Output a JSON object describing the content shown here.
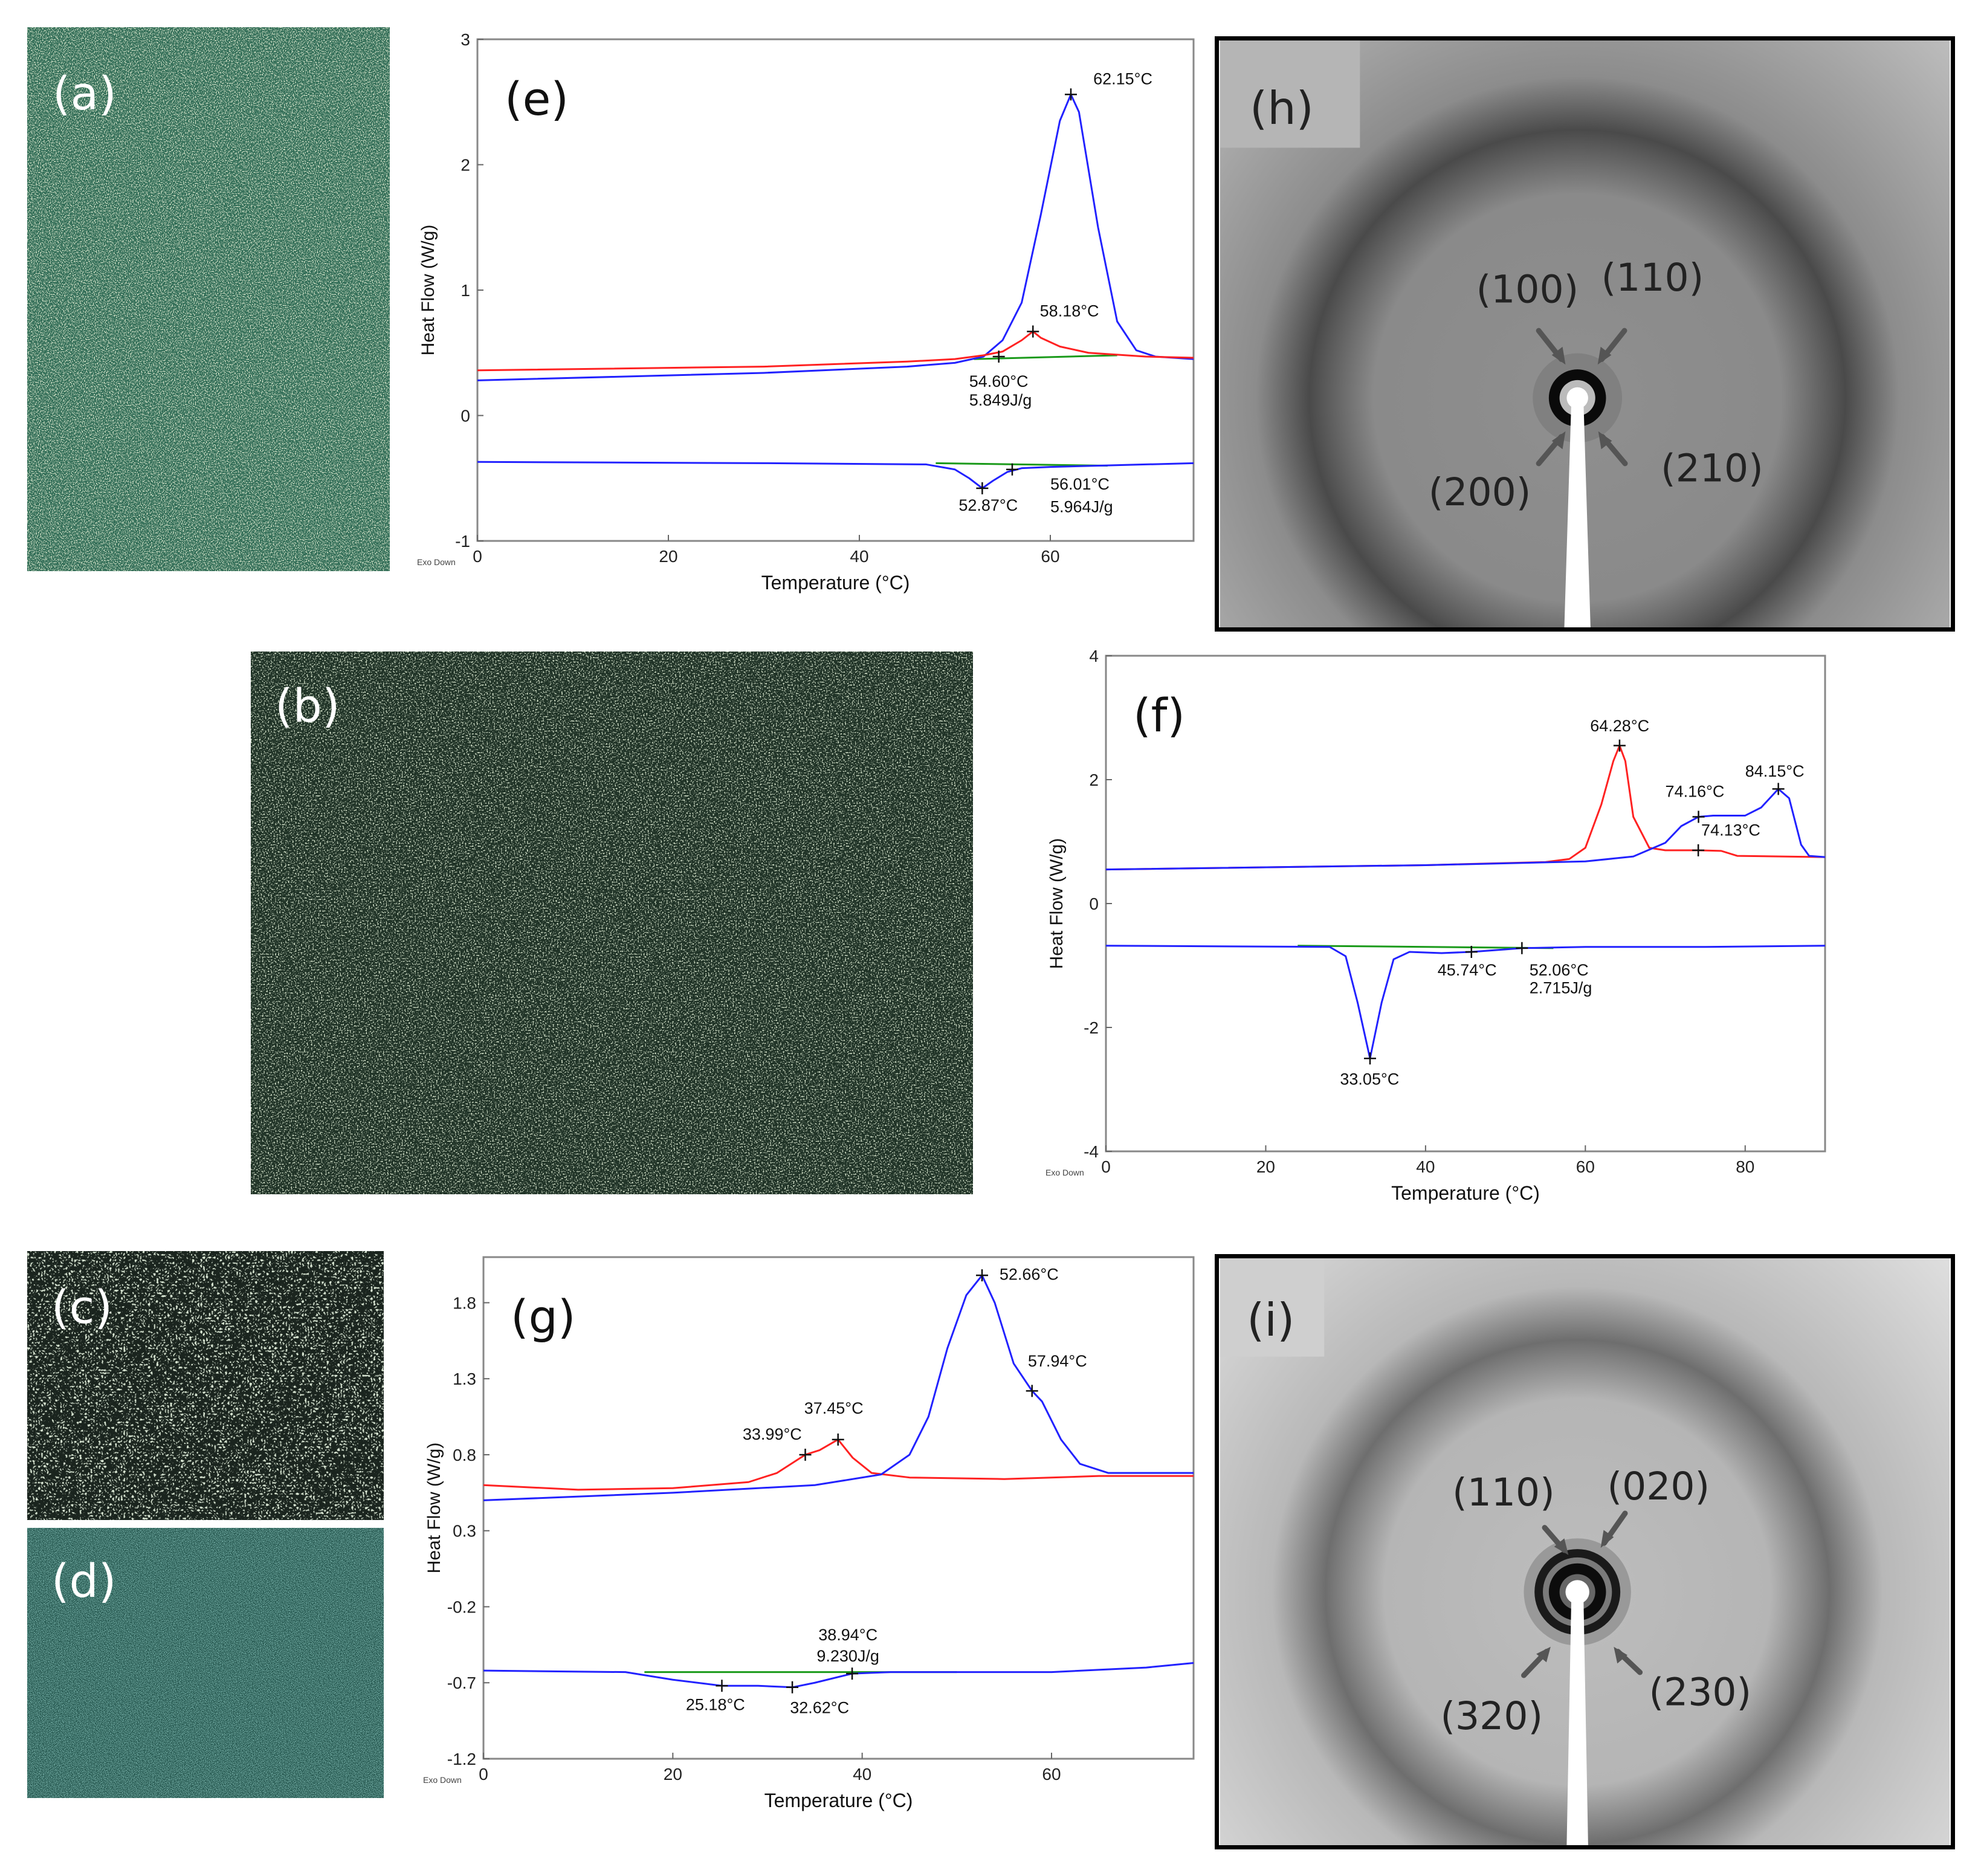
{
  "figure": {
    "panels": {
      "a": {
        "label": "(a)",
        "kind": "polarized optical micrograph",
        "tint": "#2f6b55"
      },
      "b": {
        "label": "(b)",
        "kind": "polarized optical micrograph",
        "tint": "#2e4a38"
      },
      "c": {
        "label": "(c)",
        "kind": "polarized optical micrograph",
        "tint": "#2b3a30"
      },
      "d": {
        "label": "(d)",
        "kind": "polarized optical micrograph",
        "tint": "#1f5a52"
      },
      "h": {
        "label": "(h)",
        "kind": "XRD pattern",
        "peaks": [
          "(100)",
          "(110)",
          "(200)",
          "(210)"
        ]
      },
      "i": {
        "label": "(i)",
        "kind": "XRD pattern",
        "peaks": [
          "(110)",
          "(020)",
          "(320)",
          "(230)"
        ]
      }
    }
  },
  "chart_data": [
    {
      "id": "e",
      "type": "line",
      "label": "(e)",
      "xlabel": "Temperature (°C)",
      "ylabel": "Heat Flow (W/g)",
      "footnote": "Exo Down",
      "xlim": [
        0,
        75
      ],
      "ylim": [
        -1,
        3
      ],
      "xticks": [
        0,
        20,
        40,
        60
      ],
      "yticks": [
        -1,
        0,
        1,
        2,
        3
      ],
      "ytick_labels": [
        "-1",
        "0",
        "1",
        "2",
        "3"
      ],
      "series": [
        {
          "name": "heating-blue",
          "color": "#2222ff",
          "points": [
            [
              0,
              0.28
            ],
            [
              30,
              0.34
            ],
            [
              45,
              0.39
            ],
            [
              50,
              0.42
            ],
            [
              53,
              0.47
            ],
            [
              55,
              0.6
            ],
            [
              57,
              0.9
            ],
            [
              59,
              1.6
            ],
            [
              61,
              2.35
            ],
            [
              62.15,
              2.56
            ],
            [
              63,
              2.42
            ],
            [
              65,
              1.5
            ],
            [
              67,
              0.75
            ],
            [
              69,
              0.52
            ],
            [
              71,
              0.47
            ],
            [
              75,
              0.45
            ]
          ]
        },
        {
          "name": "heating-red",
          "color": "#ff2222",
          "points": [
            [
              0,
              0.36
            ],
            [
              30,
              0.39
            ],
            [
              45,
              0.43
            ],
            [
              50,
              0.45
            ],
            [
              53,
              0.48
            ],
            [
              55,
              0.51
            ],
            [
              57,
              0.6
            ],
            [
              58.18,
              0.67
            ],
            [
              59,
              0.62
            ],
            [
              61,
              0.55
            ],
            [
              64,
              0.5
            ],
            [
              70,
              0.47
            ],
            [
              75,
              0.46
            ]
          ]
        },
        {
          "name": "cooling-blue",
          "color": "#2222ff",
          "points": [
            [
              0,
              -0.37
            ],
            [
              30,
              -0.38
            ],
            [
              47,
              -0.39
            ],
            [
              50,
              -0.43
            ],
            [
              51.5,
              -0.5
            ],
            [
              52.87,
              -0.58
            ],
            [
              54,
              -0.52
            ],
            [
              55.5,
              -0.45
            ],
            [
              57,
              -0.42
            ],
            [
              60,
              -0.41
            ],
            [
              65,
              -0.4
            ],
            [
              70,
              -0.39
            ],
            [
              75,
              -0.38
            ]
          ]
        }
      ],
      "baselines": [
        {
          "color": "#1a9a1a",
          "points": [
            [
              52,
              0.45
            ],
            [
              67,
              0.48
            ]
          ]
        },
        {
          "color": "#1a9a1a",
          "points": [
            [
              48,
              -0.38
            ],
            [
              66,
              -0.4
            ]
          ]
        }
      ],
      "markers": [
        [
          62.15,
          2.56
        ],
        [
          58.18,
          0.67
        ],
        [
          54.6,
          0.47
        ],
        [
          52.87,
          -0.58
        ],
        [
          56.01,
          -0.43
        ]
      ],
      "annotations": [
        {
          "text": "62.15°C",
          "at": [
            64.5,
            2.64
          ],
          "anchor": "start"
        },
        {
          "text": "58.18°C",
          "at": [
            62.0,
            0.79
          ],
          "anchor": "middle"
        },
        {
          "text": "54.60°C",
          "at": [
            51.5,
            0.23
          ],
          "anchor": "start"
        },
        {
          "text": "5.849J/g",
          "at": [
            51.5,
            0.08
          ],
          "anchor": "start"
        },
        {
          "text": "52.87°C",
          "at": [
            53.5,
            -0.76
          ],
          "anchor": "middle"
        },
        {
          "text": "56.01°C",
          "at": [
            60.0,
            -0.59
          ],
          "anchor": "start"
        },
        {
          "text": "5.964J/g",
          "at": [
            60.0,
            -0.77
          ],
          "anchor": "start"
        }
      ]
    },
    {
      "id": "f",
      "type": "line",
      "label": "(f)",
      "xlabel": "Temperature (°C)",
      "ylabel": "Heat Flow (W/g)",
      "footnote": "Exo Down",
      "xlim": [
        0,
        90
      ],
      "ylim": [
        -4,
        4
      ],
      "xticks": [
        0,
        20,
        40,
        60,
        80
      ],
      "yticks": [
        -4,
        -2,
        0,
        2,
        4
      ],
      "ytick_labels": [
        "-4",
        "-2",
        "0",
        "2",
        "4"
      ],
      "series": [
        {
          "name": "heating-red",
          "color": "#ff2222",
          "points": [
            [
              0,
              0.55
            ],
            [
              40,
              0.62
            ],
            [
              55,
              0.67
            ],
            [
              58,
              0.72
            ],
            [
              60,
              0.9
            ],
            [
              62,
              1.6
            ],
            [
              63.5,
              2.3
            ],
            [
              64.28,
              2.55
            ],
            [
              65,
              2.3
            ],
            [
              66,
              1.4
            ],
            [
              68,
              0.9
            ],
            [
              70,
              0.86
            ],
            [
              74.13,
              0.86
            ],
            [
              77,
              0.85
            ],
            [
              79,
              0.77
            ],
            [
              90,
              0.75
            ]
          ]
        },
        {
          "name": "heating-blue",
          "color": "#2222ff",
          "points": [
            [
              0,
              0.55
            ],
            [
              40,
              0.62
            ],
            [
              60,
              0.68
            ],
            [
              66,
              0.76
            ],
            [
              70,
              0.98
            ],
            [
              72,
              1.25
            ],
            [
              74.16,
              1.4
            ],
            [
              76,
              1.42
            ],
            [
              80,
              1.42
            ],
            [
              82,
              1.55
            ],
            [
              84.15,
              1.85
            ],
            [
              85.5,
              1.7
            ],
            [
              87,
              0.95
            ],
            [
              88,
              0.77
            ],
            [
              90,
              0.75
            ]
          ]
        },
        {
          "name": "cooling-blue",
          "color": "#2222ff",
          "points": [
            [
              0,
              -0.68
            ],
            [
              28,
              -0.7
            ],
            [
              30,
              -0.85
            ],
            [
              31.5,
              -1.6
            ],
            [
              33.05,
              -2.5
            ],
            [
              34.5,
              -1.6
            ],
            [
              36,
              -0.9
            ],
            [
              38,
              -0.78
            ],
            [
              42,
              -0.8
            ],
            [
              45.74,
              -0.78
            ],
            [
              50,
              -0.74
            ],
            [
              52.06,
              -0.72
            ],
            [
              60,
              -0.7
            ],
            [
              75,
              -0.7
            ],
            [
              90,
              -0.68
            ]
          ]
        }
      ],
      "baselines": [
        {
          "color": "#1a9a1a",
          "points": [
            [
              24,
              -0.68
            ],
            [
              56,
              -0.72
            ]
          ]
        }
      ],
      "markers": [
        [
          64.28,
          2.55
        ],
        [
          74.16,
          1.4
        ],
        [
          74.13,
          0.86
        ],
        [
          84.15,
          1.85
        ],
        [
          33.05,
          -2.5
        ],
        [
          45.74,
          -0.78
        ],
        [
          52.06,
          -0.72
        ]
      ],
      "annotations": [
        {
          "text": "64.28°C",
          "at": [
            64.3,
            2.78
          ],
          "anchor": "middle"
        },
        {
          "text": "74.16°C",
          "at": [
            70.0,
            1.72
          ],
          "anchor": "start"
        },
        {
          "text": "74.13°C",
          "at": [
            74.5,
            1.1
          ],
          "anchor": "start"
        },
        {
          "text": "84.15°C",
          "at": [
            80.0,
            2.05
          ],
          "anchor": "start"
        },
        {
          "text": "33.05°C",
          "at": [
            33.0,
            -2.92
          ],
          "anchor": "middle"
        },
        {
          "text": "45.74°C",
          "at": [
            41.5,
            -1.16
          ],
          "anchor": "start"
        },
        {
          "text": "52.06°C",
          "at": [
            53.0,
            -1.16
          ],
          "anchor": "start"
        },
        {
          "text": "2.715J/g",
          "at": [
            53.0,
            -1.45
          ],
          "anchor": "start"
        }
      ]
    },
    {
      "id": "g",
      "type": "line",
      "label": "(g)",
      "xlabel": "Temperature (°C)",
      "ylabel": "Heat Flow (W/g)",
      "footnote": "Exo Down",
      "xlim": [
        0,
        75
      ],
      "ylim": [
        -1.2,
        2.1
      ],
      "xticks": [
        0,
        20,
        40,
        60
      ],
      "yticks": [
        -1.2,
        -0.7,
        -0.2,
        0.3,
        0.8,
        1.3,
        1.8
      ],
      "ytick_labels": [
        "-1.2",
        "-0.7",
        "-0.2",
        "0.3",
        "0.8",
        "1.3",
        "1.8"
      ],
      "series": [
        {
          "name": "heating-red",
          "color": "#ff2222",
          "points": [
            [
              0,
              0.6
            ],
            [
              10,
              0.57
            ],
            [
              20,
              0.58
            ],
            [
              28,
              0.62
            ],
            [
              31,
              0.68
            ],
            [
              33.99,
              0.8
            ],
            [
              35.5,
              0.83
            ],
            [
              37.45,
              0.9
            ],
            [
              39,
              0.78
            ],
            [
              41,
              0.68
            ],
            [
              45,
              0.65
            ],
            [
              55,
              0.64
            ],
            [
              65,
              0.66
            ],
            [
              75,
              0.66
            ]
          ]
        },
        {
          "name": "heating-blue",
          "color": "#2222ff",
          "points": [
            [
              0,
              0.5
            ],
            [
              20,
              0.55
            ],
            [
              35,
              0.6
            ],
            [
              42,
              0.67
            ],
            [
              45,
              0.8
            ],
            [
              47,
              1.05
            ],
            [
              49,
              1.5
            ],
            [
              51,
              1.85
            ],
            [
              52.66,
              1.98
            ],
            [
              54,
              1.8
            ],
            [
              56,
              1.4
            ],
            [
              57.94,
              1.22
            ],
            [
              59,
              1.15
            ],
            [
              61,
              0.9
            ],
            [
              63,
              0.74
            ],
            [
              66,
              0.68
            ],
            [
              75,
              0.68
            ]
          ]
        },
        {
          "name": "cooling-blue",
          "color": "#2222ff",
          "points": [
            [
              0,
              -0.62
            ],
            [
              15,
              -0.63
            ],
            [
              20,
              -0.68
            ],
            [
              25.18,
              -0.72
            ],
            [
              29,
              -0.72
            ],
            [
              32.62,
              -0.73
            ],
            [
              35,
              -0.7
            ],
            [
              38.94,
              -0.64
            ],
            [
              43,
              -0.63
            ],
            [
              50,
              -0.63
            ],
            [
              60,
              -0.63
            ],
            [
              70,
              -0.6
            ],
            [
              75,
              -0.57
            ]
          ]
        }
      ],
      "baselines": [
        {
          "color": "#1a9a1a",
          "points": [
            [
              17,
              -0.63
            ],
            [
              50,
              -0.63
            ]
          ]
        }
      ],
      "markers": [
        [
          52.66,
          1.98
        ],
        [
          57.94,
          1.22
        ],
        [
          37.45,
          0.9
        ],
        [
          33.99,
          0.8
        ],
        [
          38.94,
          -0.64
        ],
        [
          25.18,
          -0.72
        ],
        [
          32.62,
          -0.73
        ]
      ],
      "annotations": [
        {
          "text": "52.66°C",
          "at": [
            54.5,
            1.95
          ],
          "anchor": "start"
        },
        {
          "text": "57.94°C",
          "at": [
            57.5,
            1.38
          ],
          "anchor": "start"
        },
        {
          "text": "37.45°C",
          "at": [
            37.0,
            1.07
          ],
          "anchor": "middle"
        },
        {
          "text": "33.99°C",
          "at": [
            30.5,
            0.9
          ],
          "anchor": "middle"
        },
        {
          "text": "38.94°C",
          "at": [
            38.5,
            -0.42
          ],
          "anchor": "middle"
        },
        {
          "text": "9.230J/g",
          "at": [
            38.5,
            -0.56
          ],
          "anchor": "middle"
        },
        {
          "text": "25.18°C",
          "at": [
            24.5,
            -0.88
          ],
          "anchor": "middle"
        },
        {
          "text": "32.62°C",
          "at": [
            35.5,
            -0.9
          ],
          "anchor": "middle"
        }
      ]
    }
  ]
}
